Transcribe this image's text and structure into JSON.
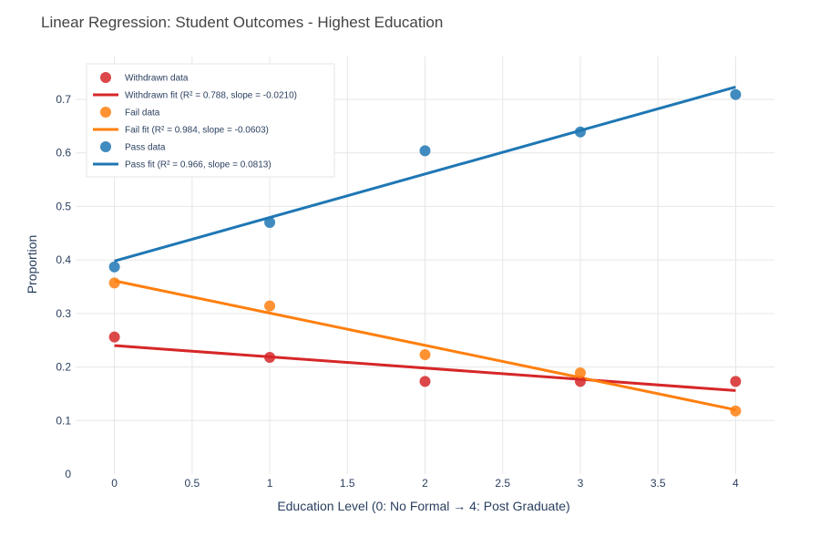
{
  "chart_data": {
    "type": "scatter",
    "title": "Linear Regression: Student Outcomes - Highest Education",
    "xlabel": "Education Level (0: No Formal → 4: Post Graduate)",
    "ylabel": "Proportion",
    "xlim": [
      -0.25,
      4.25
    ],
    "ylim": [
      0,
      0.78
    ],
    "x_ticks": [
      "0",
      "0.5",
      "1",
      "1.5",
      "2",
      "2.5",
      "3",
      "3.5",
      "4"
    ],
    "y_ticks": [
      "0",
      "0.1",
      "0.2",
      "0.3",
      "0.4",
      "0.5",
      "0.6",
      "0.7"
    ],
    "grid": true,
    "legend_position": "top-left",
    "series": [
      {
        "name": "Withdrawn data",
        "kind": "markers",
        "color": "#d62728",
        "x": [
          0,
          1,
          2,
          3,
          4
        ],
        "y": [
          0.256,
          0.218,
          0.173,
          0.173,
          0.173
        ]
      },
      {
        "name": "Withdrawn fit (R² = 0.788, slope = -0.0210)",
        "kind": "line",
        "color": "#d62728",
        "x": [
          0,
          4
        ],
        "y": [
          0.24,
          0.156
        ]
      },
      {
        "name": "Fail data",
        "kind": "markers",
        "color": "#ff7f0e",
        "x": [
          0,
          1,
          2,
          3,
          4
        ],
        "y": [
          0.357,
          0.314,
          0.223,
          0.189,
          0.118
        ]
      },
      {
        "name": "Fail fit (R² = 0.984, slope = -0.0603)",
        "kind": "line",
        "color": "#ff7f0e",
        "x": [
          0,
          4
        ],
        "y": [
          0.361,
          0.12
        ]
      },
      {
        "name": "Pass data",
        "kind": "markers",
        "color": "#1f77b4",
        "x": [
          0,
          1,
          2,
          3,
          4
        ],
        "y": [
          0.387,
          0.47,
          0.604,
          0.639,
          0.709
        ]
      },
      {
        "name": "Pass fit (R² = 0.966, slope = 0.0813)",
        "kind": "line",
        "color": "#1f77b4",
        "x": [
          0,
          4
        ],
        "y": [
          0.398,
          0.723
        ]
      }
    ]
  }
}
